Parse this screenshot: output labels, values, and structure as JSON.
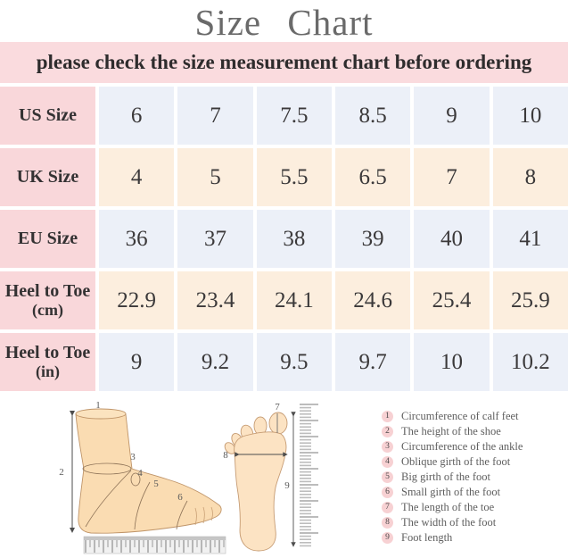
{
  "page": {
    "title": "Size Chart"
  },
  "banner": {
    "text": "please check the size measurement chart before ordering"
  },
  "table": {
    "rows": [
      {
        "label": "US Size",
        "sub": "",
        "values": [
          "6",
          "7",
          "7.5",
          "8.5",
          "9",
          "10"
        ]
      },
      {
        "label": "UK Size",
        "sub": "",
        "values": [
          "4",
          "5",
          "5.5",
          "6.5",
          "7",
          "8"
        ]
      },
      {
        "label": "EU Size",
        "sub": "",
        "values": [
          "36",
          "37",
          "38",
          "39",
          "40",
          "41"
        ]
      },
      {
        "label": "Heel to Toe",
        "sub": "(cm)",
        "values": [
          "22.9",
          "23.4",
          "24.1",
          "24.6",
          "25.4",
          "25.9"
        ]
      },
      {
        "label": "Heel to Toe",
        "sub": "(in)",
        "values": [
          "9",
          "9.2",
          "9.5",
          "9.7",
          "10",
          "10.2"
        ]
      }
    ]
  },
  "diagram": {
    "side_labels": [
      "1",
      "2",
      "3",
      "4",
      "5",
      "6"
    ],
    "top_labels": [
      "7",
      "8",
      "9"
    ]
  },
  "legend": {
    "items": [
      {
        "num": "1",
        "text": "Circumference of calf feet"
      },
      {
        "num": "2",
        "text": "The height of the shoe"
      },
      {
        "num": "3",
        "text": "Circumference of the ankle"
      },
      {
        "num": "4",
        "text": "Oblique girth of the foot"
      },
      {
        "num": "5",
        "text": "Big girth of the foot"
      },
      {
        "num": "6",
        "text": "Small girth of the foot"
      },
      {
        "num": "7",
        "text": "The length of the toe"
      },
      {
        "num": "8",
        "text": "The width of the foot"
      },
      {
        "num": "9",
        "text": "Foot length"
      }
    ]
  },
  "colors": {
    "banner_bg": "#fadbde",
    "header_cell_bg": "#f9d7da",
    "row_blue_bg": "#ecf0f8",
    "row_peach_bg": "#fceede",
    "title_text": "#6a6a6a",
    "cell_text": "#3b393a",
    "legend_circle_bg": "#f7d1d3",
    "skin_fill": "#fadcb2"
  }
}
